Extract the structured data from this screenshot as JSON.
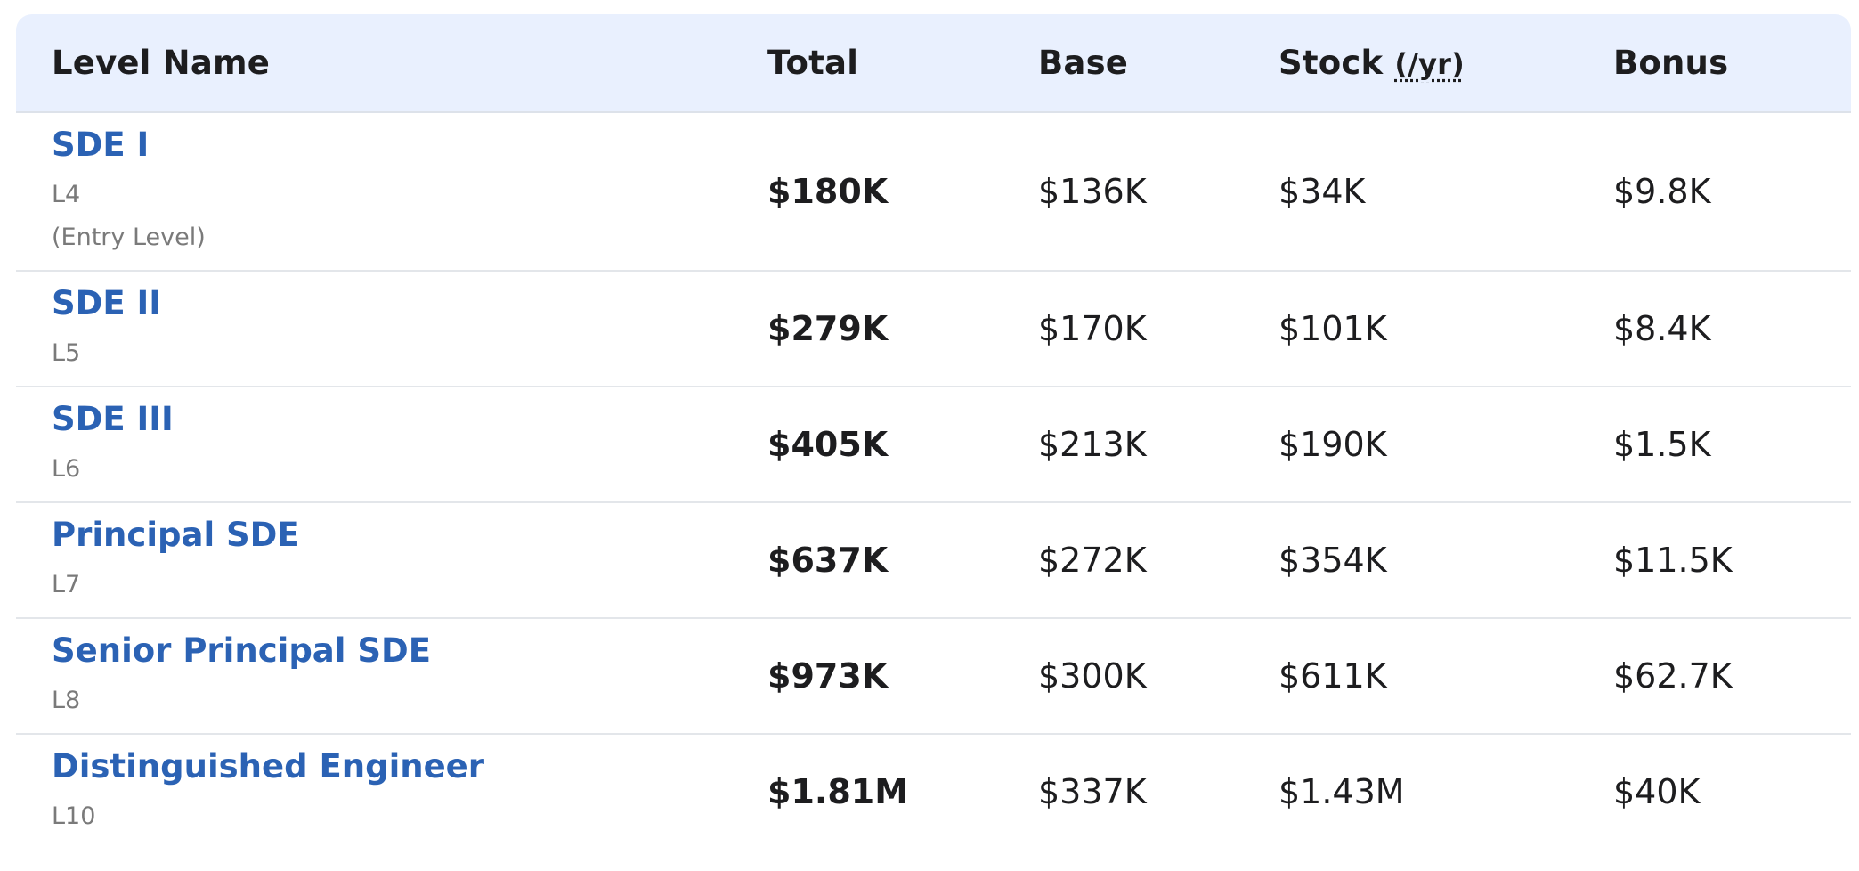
{
  "header": {
    "level_name": "Level Name",
    "total": "Total",
    "base": "Base",
    "stock": "Stock",
    "stock_unit": "(/yr)",
    "bonus": "Bonus"
  },
  "rows": [
    {
      "title": "SDE I",
      "code": "L4",
      "note": "(Entry Level)",
      "total": "$180K",
      "base": "$136K",
      "stock": "$34K",
      "bonus": "$9.8K"
    },
    {
      "title": "SDE II",
      "code": "L5",
      "total": "$279K",
      "base": "$170K",
      "stock": "$101K",
      "bonus": "$8.4K"
    },
    {
      "title": "SDE III",
      "code": "L6",
      "total": "$405K",
      "base": "$213K",
      "stock": "$190K",
      "bonus": "$1.5K"
    },
    {
      "title": "Principal SDE",
      "code": "L7",
      "total": "$637K",
      "base": "$272K",
      "stock": "$354K",
      "bonus": "$11.5K"
    },
    {
      "title": "Senior Principal SDE",
      "code": "L8",
      "total": "$973K",
      "base": "$300K",
      "stock": "$611K",
      "bonus": "$62.7K"
    },
    {
      "title": "Distinguished Engineer",
      "code": "L10",
      "total": "$1.81M",
      "base": "$337K",
      "stock": "$1.43M",
      "bonus": "$40K"
    }
  ],
  "colors": {
    "header_bg": "#e9f0fe",
    "link": "#2b62b4",
    "muted": "#7a7a7a",
    "text": "#1d1d1f"
  }
}
